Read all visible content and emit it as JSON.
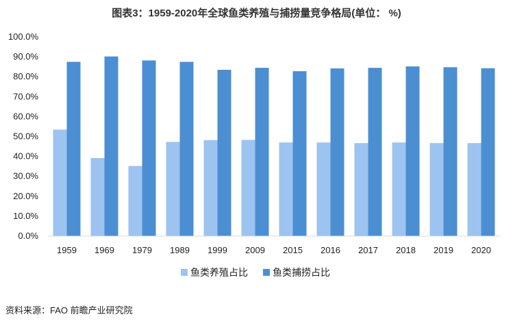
{
  "colors": {
    "aquaculture": "#9dc3f0",
    "capture": "#4b8fd2",
    "axis": "#d9d9d9"
  },
  "chart_data": {
    "type": "bar",
    "title": "图表3：1959-2020年全球鱼类养殖与捕捞量竞争格局(单位： %)",
    "categories": [
      "1959",
      "1969",
      "1979",
      "1989",
      "1999",
      "2009",
      "2015",
      "2016",
      "2017",
      "2018",
      "2019",
      "2020"
    ],
    "series": [
      {
        "name": "鱼类养殖占比",
        "values": [
          53.5,
          39.2,
          35.2,
          47.3,
          48.2,
          48.3,
          47.0,
          47.0,
          46.7,
          47.0,
          46.7,
          46.7
        ]
      },
      {
        "name": "鱼类捕捞占比",
        "values": [
          87.5,
          90.2,
          88.2,
          87.5,
          83.5,
          84.5,
          82.8,
          84.2,
          84.5,
          85.2,
          84.8,
          84.3
        ]
      }
    ],
    "ylim": [
      0,
      100
    ],
    "yticks": [
      "0.0%",
      "10.0%",
      "20.0%",
      "30.0%",
      "40.0%",
      "50.0%",
      "60.0%",
      "70.0%",
      "80.0%",
      "90.0%",
      "100.0%"
    ],
    "xlabel": "",
    "ylabel": "",
    "grid": false,
    "legend": "bottom"
  },
  "source": "资料来源：FAO 前瞻产业研究院"
}
